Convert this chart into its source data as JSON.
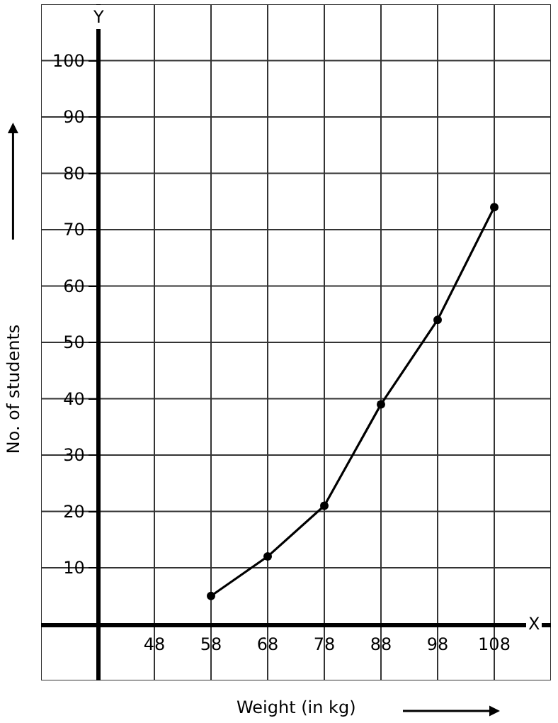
{
  "chart_data": {
    "type": "line",
    "xlabel": "Weight (in kg)",
    "ylabel": "No. of students",
    "x": [
      58,
      68,
      78,
      88,
      98,
      108
    ],
    "series": [
      {
        "color": "#000000",
        "values": [
          5,
          12,
          21,
          39,
          54,
          74
        ]
      }
    ],
    "xlim": [
      28,
      118
    ],
    "ylim": [
      -10,
      110
    ],
    "xticks": [
      48,
      58,
      68,
      78,
      88,
      98,
      108
    ],
    "yticks": [
      {
        "value": 0,
        "label": null
      },
      10,
      20,
      30,
      40,
      50,
      60,
      70,
      80,
      90,
      100
    ],
    "annotations": [
      "X",
      "Y"
    ],
    "grid": true,
    "marker": "circle",
    "line_style": "solid"
  }
}
